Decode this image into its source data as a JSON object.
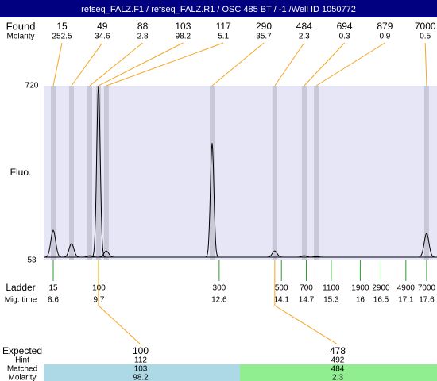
{
  "title": "refseq_FALZ.F1 / refseq_FALZ.R1 / OSC 485 BT / -1 /Well ID 1050772",
  "found": {
    "label": "Found",
    "values": [
      15,
      49,
      88,
      103,
      117,
      290,
      484,
      694,
      879,
      7000
    ]
  },
  "molarity": {
    "label": "Molarity",
    "values": [
      252.5,
      34.6,
      2.8,
      98.2,
      5.1,
      35.7,
      2.3,
      0.3,
      0.9,
      0.5
    ]
  },
  "plot": {
    "ylabel": "Fluo.",
    "ylim": [
      53,
      720
    ],
    "yticks": [
      720,
      53
    ],
    "xlim": [
      8.37,
      17.85
    ]
  },
  "peaks": {
    "mig_times": [
      8.6,
      9.04,
      9.48,
      9.69,
      9.88,
      12.43,
      13.94,
      14.65,
      14.94,
      17.6
    ],
    "heights": [
      168,
      117,
      71,
      720,
      89,
      501,
      89,
      71,
      68,
      156
    ]
  },
  "ladder": {
    "label": "Ladder",
    "sizes": [
      15,
      100,
      300,
      500,
      700,
      1100,
      1900,
      2900,
      4900,
      7000
    ],
    "time_label": "Mig. time",
    "mig_times": [
      8.6,
      9.7,
      12.6,
      14.1,
      14.7,
      15.3,
      16,
      16.5,
      17.1,
      17.6
    ]
  },
  "expected": {
    "labels": [
      "Expected",
      "Hint",
      "Matched",
      "Molarity"
    ],
    "columns": [
      {
        "expected": 100,
        "hint": 112,
        "matched": 103,
        "molarity": 98.2
      },
      {
        "expected": 478,
        "hint": 492,
        "matched": 484,
        "molarity": 2.3
      }
    ]
  }
}
